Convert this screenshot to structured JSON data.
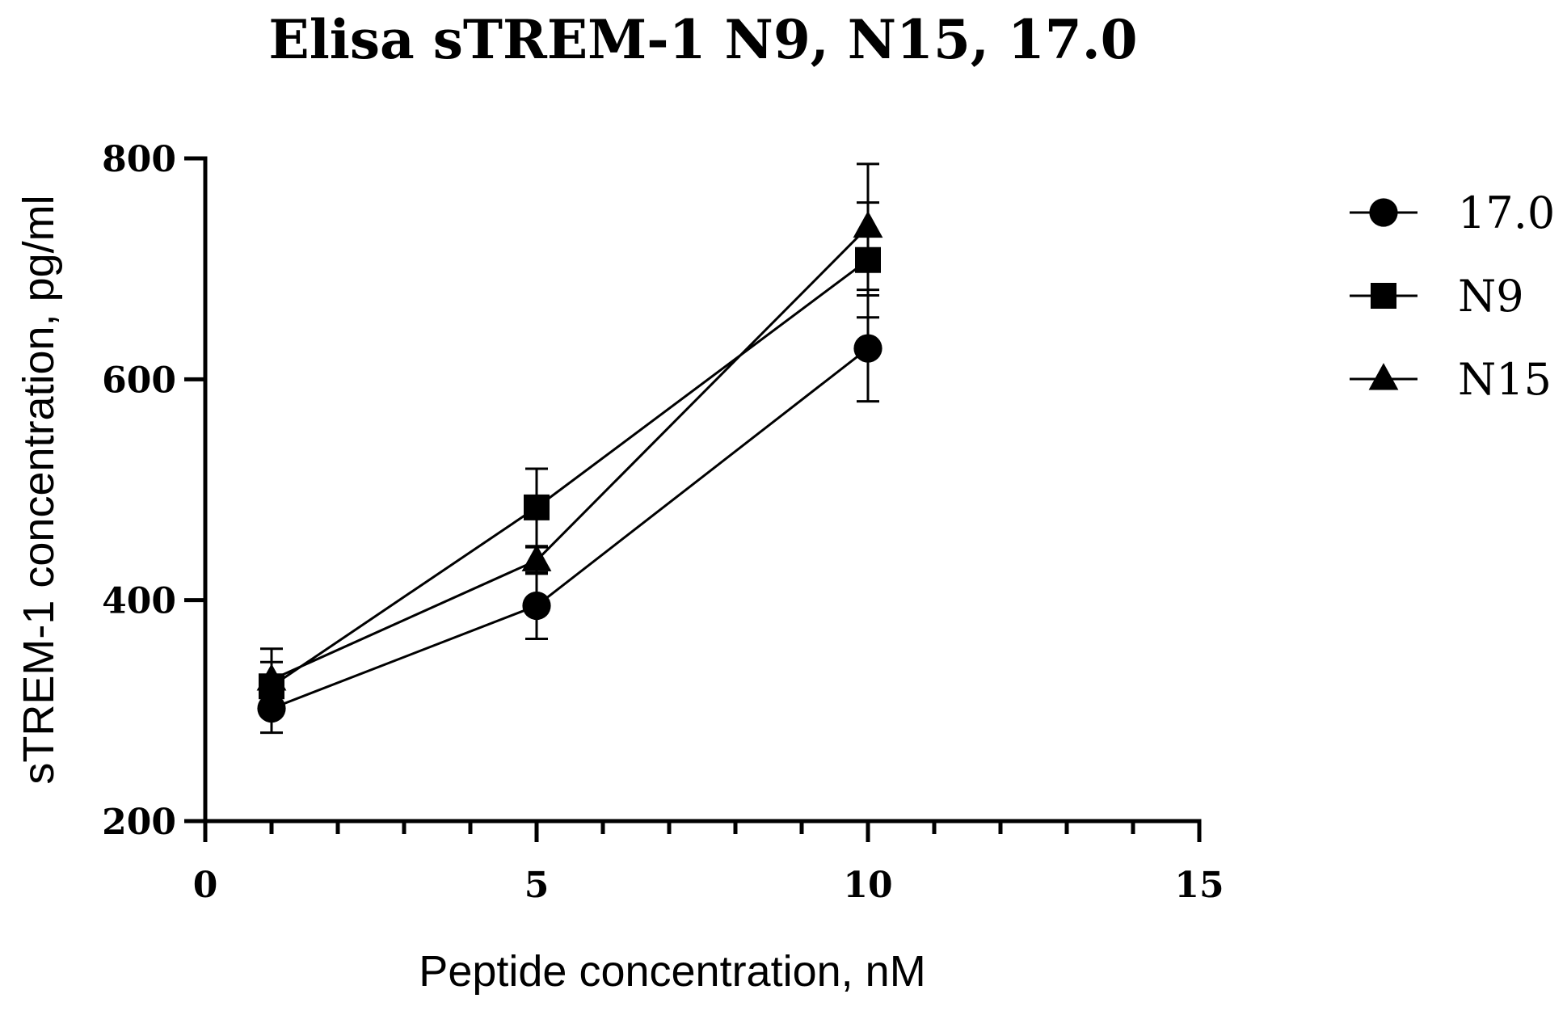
{
  "chart_data": {
    "type": "line",
    "title": "Elisa sTREM-1 N9, N15, 17.0",
    "xlabel": "Peptide concentration, nM",
    "ylabel": "sTREM-1 concentration, pg/ml",
    "xlim": [
      0,
      15
    ],
    "ylim": [
      200,
      800
    ],
    "x_ticks": [
      0,
      5,
      10,
      15
    ],
    "x_minor_step": 1,
    "y_ticks": [
      200,
      400,
      600,
      800
    ],
    "grid": false,
    "legend_position": "right",
    "x": [
      1,
      5,
      10
    ],
    "series": [
      {
        "name": "17.0",
        "marker": "circle",
        "values": [
          302,
          395,
          628
        ],
        "errors": [
          22,
          30,
          48
        ]
      },
      {
        "name": "N9",
        "marker": "square",
        "values": [
          322,
          484,
          708
        ],
        "errors": [
          22,
          35,
          52
        ]
      },
      {
        "name": "N15",
        "marker": "triangle",
        "values": [
          328,
          436,
          738
        ],
        "errors": [
          28,
          12,
          57
        ]
      }
    ],
    "colors": {
      "line": "#000000",
      "marker": "#000000"
    }
  }
}
